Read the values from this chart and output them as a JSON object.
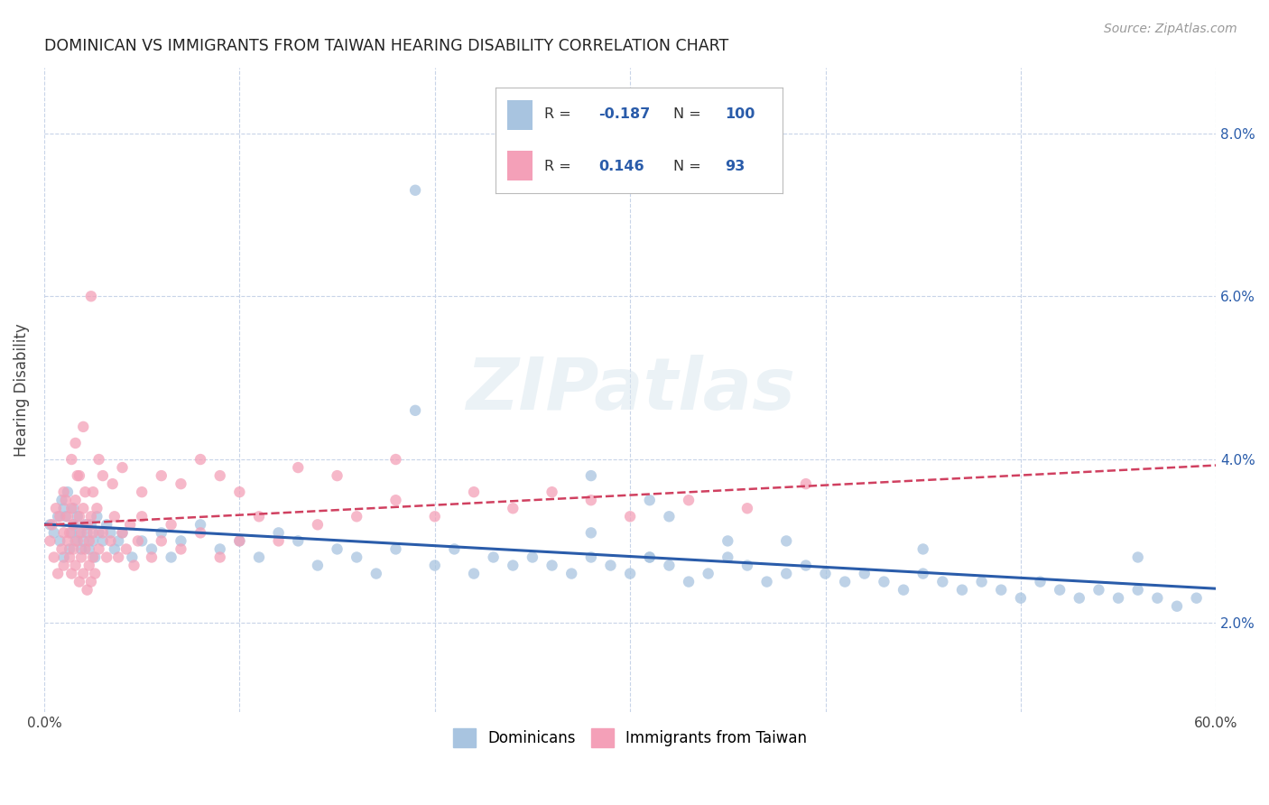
{
  "title": "DOMINICAN VS IMMIGRANTS FROM TAIWAN HEARING DISABILITY CORRELATION CHART",
  "source": "Source: ZipAtlas.com",
  "ylabel": "Hearing Disability",
  "xlim": [
    0.0,
    0.6
  ],
  "ylim": [
    0.009,
    0.088
  ],
  "ytick_positions": [
    0.02,
    0.04,
    0.06,
    0.08
  ],
  "ytick_labels": [
    "2.0%",
    "4.0%",
    "6.0%",
    "8.0%"
  ],
  "xtick_positions": [
    0.0,
    0.1,
    0.2,
    0.3,
    0.4,
    0.5,
    0.6
  ],
  "xtick_labels": [
    "0.0%",
    "",
    "",
    "",
    "",
    "",
    "60.0%"
  ],
  "dominican_color": "#a8c4e0",
  "taiwan_color": "#f4a0b8",
  "dominican_line_color": "#2a5caa",
  "taiwan_line_color": "#d04060",
  "background_color": "#ffffff",
  "grid_color": "#c8d4e8",
  "watermark": "ZIPatlas",
  "legend_R1": "-0.187",
  "legend_N1": "100",
  "legend_R2": "0.146",
  "legend_N2": "93",
  "dom_x": [
    0.003,
    0.005,
    0.007,
    0.008,
    0.009,
    0.01,
    0.01,
    0.011,
    0.012,
    0.013,
    0.014,
    0.015,
    0.015,
    0.016,
    0.017,
    0.018,
    0.019,
    0.02,
    0.021,
    0.022,
    0.023,
    0.024,
    0.025,
    0.026,
    0.027,
    0.028,
    0.03,
    0.032,
    0.034,
    0.036,
    0.038,
    0.04,
    0.045,
    0.05,
    0.055,
    0.06,
    0.065,
    0.07,
    0.08,
    0.09,
    0.1,
    0.11,
    0.12,
    0.13,
    0.14,
    0.15,
    0.16,
    0.17,
    0.18,
    0.19,
    0.2,
    0.21,
    0.22,
    0.23,
    0.24,
    0.25,
    0.26,
    0.27,
    0.28,
    0.29,
    0.3,
    0.31,
    0.32,
    0.33,
    0.34,
    0.35,
    0.36,
    0.37,
    0.38,
    0.39,
    0.4,
    0.41,
    0.42,
    0.43,
    0.44,
    0.45,
    0.46,
    0.47,
    0.48,
    0.49,
    0.5,
    0.51,
    0.52,
    0.53,
    0.54,
    0.55,
    0.56,
    0.57,
    0.58,
    0.59,
    0.19,
    0.28,
    0.31,
    0.32,
    0.35,
    0.38,
    0.28,
    0.31,
    0.45,
    0.56
  ],
  "dom_y": [
    0.032,
    0.031,
    0.033,
    0.03,
    0.035,
    0.034,
    0.028,
    0.033,
    0.036,
    0.029,
    0.031,
    0.034,
    0.032,
    0.03,
    0.033,
    0.031,
    0.029,
    0.03,
    0.032,
    0.031,
    0.029,
    0.032,
    0.03,
    0.028,
    0.033,
    0.031,
    0.03,
    0.032,
    0.031,
    0.029,
    0.03,
    0.031,
    0.028,
    0.03,
    0.029,
    0.031,
    0.028,
    0.03,
    0.032,
    0.029,
    0.03,
    0.028,
    0.031,
    0.03,
    0.027,
    0.029,
    0.028,
    0.026,
    0.029,
    0.073,
    0.027,
    0.029,
    0.026,
    0.028,
    0.027,
    0.028,
    0.027,
    0.026,
    0.028,
    0.027,
    0.026,
    0.028,
    0.027,
    0.025,
    0.026,
    0.028,
    0.027,
    0.025,
    0.026,
    0.027,
    0.026,
    0.025,
    0.026,
    0.025,
    0.024,
    0.026,
    0.025,
    0.024,
    0.025,
    0.024,
    0.023,
    0.025,
    0.024,
    0.023,
    0.024,
    0.023,
    0.024,
    0.023,
    0.022,
    0.023,
    0.046,
    0.038,
    0.035,
    0.033,
    0.03,
    0.03,
    0.031,
    0.028,
    0.029,
    0.028
  ],
  "tai_x": [
    0.003,
    0.004,
    0.005,
    0.006,
    0.007,
    0.008,
    0.009,
    0.01,
    0.01,
    0.01,
    0.011,
    0.012,
    0.012,
    0.013,
    0.013,
    0.014,
    0.014,
    0.015,
    0.015,
    0.016,
    0.016,
    0.017,
    0.017,
    0.018,
    0.018,
    0.019,
    0.019,
    0.02,
    0.02,
    0.021,
    0.021,
    0.022,
    0.022,
    0.023,
    0.023,
    0.024,
    0.024,
    0.025,
    0.025,
    0.026,
    0.027,
    0.028,
    0.03,
    0.032,
    0.034,
    0.036,
    0.038,
    0.04,
    0.042,
    0.044,
    0.046,
    0.048,
    0.05,
    0.055,
    0.06,
    0.065,
    0.07,
    0.08,
    0.09,
    0.1,
    0.11,
    0.12,
    0.14,
    0.16,
    0.18,
    0.2,
    0.22,
    0.24,
    0.26,
    0.28,
    0.3,
    0.33,
    0.36,
    0.39,
    0.014,
    0.016,
    0.018,
    0.02,
    0.025,
    0.028,
    0.03,
    0.035,
    0.04,
    0.05,
    0.06,
    0.07,
    0.08,
    0.09,
    0.1,
    0.13,
    0.15,
    0.18,
    0.024
  ],
  "tai_y": [
    0.03,
    0.032,
    0.028,
    0.034,
    0.026,
    0.033,
    0.029,
    0.036,
    0.031,
    0.027,
    0.035,
    0.03,
    0.033,
    0.028,
    0.031,
    0.026,
    0.034,
    0.029,
    0.032,
    0.027,
    0.035,
    0.03,
    0.038,
    0.025,
    0.033,
    0.028,
    0.031,
    0.026,
    0.034,
    0.029,
    0.036,
    0.024,
    0.032,
    0.027,
    0.03,
    0.025,
    0.033,
    0.028,
    0.031,
    0.026,
    0.034,
    0.029,
    0.031,
    0.028,
    0.03,
    0.033,
    0.028,
    0.031,
    0.029,
    0.032,
    0.027,
    0.03,
    0.033,
    0.028,
    0.03,
    0.032,
    0.029,
    0.031,
    0.028,
    0.03,
    0.033,
    0.03,
    0.032,
    0.033,
    0.035,
    0.033,
    0.036,
    0.034,
    0.036,
    0.035,
    0.033,
    0.035,
    0.034,
    0.037,
    0.04,
    0.042,
    0.038,
    0.044,
    0.036,
    0.04,
    0.038,
    0.037,
    0.039,
    0.036,
    0.038,
    0.037,
    0.04,
    0.038,
    0.036,
    0.039,
    0.038,
    0.04,
    0.06
  ]
}
